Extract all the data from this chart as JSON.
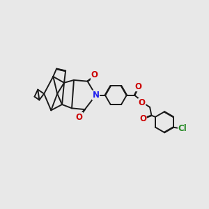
{
  "background_color": "#e8e8e8",
  "bond_color": "#1a1a1a",
  "n_color": "#2020ee",
  "o_color": "#cc0000",
  "cl_color": "#228822",
  "bond_width": 1.4,
  "font_size_atom": 8.5,
  "figsize": [
    3.0,
    3.0
  ],
  "dpi": 100,
  "xlim": [
    0,
    10
  ],
  "ylim": [
    0,
    10
  ]
}
